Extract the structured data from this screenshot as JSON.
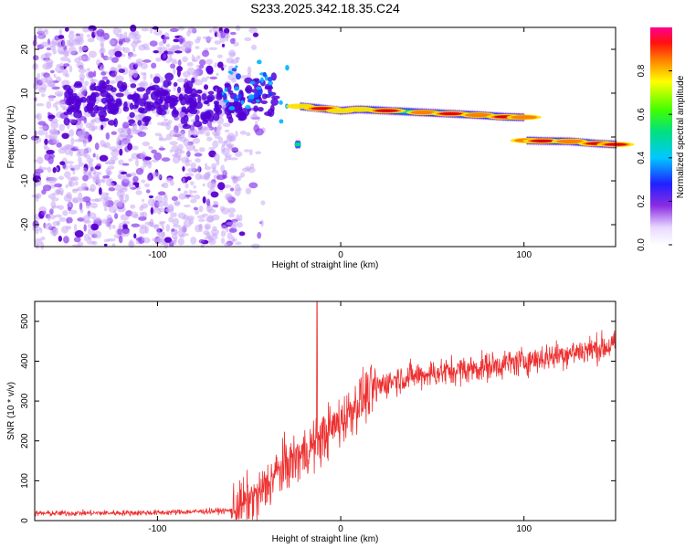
{
  "title": "S233.2025.342.18.35.C24",
  "chart_data": [
    {
      "type": "heatmap",
      "title": "S233.2025.342.18.35.C24",
      "xlabel": "Height of straight line (km)",
      "ylabel": "Frequency (Hz)",
      "xlim": [
        -167,
        150
      ],
      "ylim": [
        -25,
        25
      ],
      "xticks": [
        -100,
        0,
        100
      ],
      "xtick_labels": [
        "-100",
        "0",
        "100"
      ],
      "yticks": [
        -20,
        -10,
        0,
        10,
        20
      ],
      "ytick_labels": [
        "-20",
        "-10",
        "0",
        "10",
        "20"
      ],
      "signal_track": [
        {
          "x": -22,
          "y": 7.0,
          "amp": 0.55
        },
        {
          "x": -10,
          "y": 6.5,
          "amp": 0.9
        },
        {
          "x": 0,
          "y": 6.0,
          "amp": 0.6
        },
        {
          "x": 10,
          "y": 6.3,
          "amp": 0.7
        },
        {
          "x": 25,
          "y": 6.0,
          "amp": 0.95
        },
        {
          "x": 45,
          "y": 5.6,
          "amp": 0.75
        },
        {
          "x": 60,
          "y": 5.3,
          "amp": 0.95
        },
        {
          "x": 75,
          "y": 5.0,
          "amp": 0.8
        },
        {
          "x": 90,
          "y": 4.6,
          "amp": 0.95
        },
        {
          "x": 100,
          "y": 4.5,
          "amp": 0.8
        },
        {
          "x": 102,
          "y": -0.8,
          "amp": 0.8
        },
        {
          "x": 110,
          "y": -0.9,
          "amp": 0.95
        },
        {
          "x": 125,
          "y": -1.0,
          "amp": 0.85
        },
        {
          "x": 140,
          "y": -1.5,
          "amp": 0.95
        },
        {
          "x": 150,
          "y": -1.7,
          "amp": 0.9
        }
      ],
      "noise_region_x": [
        -167,
        -50
      ],
      "colorbar": {
        "label": "Normalized spectral amplitude",
        "range": [
          0,
          1
        ],
        "ticks": [
          0.0,
          0.2,
          0.4,
          0.6,
          0.8
        ],
        "tick_labels": [
          "0.0",
          "0.2",
          "0.4",
          "0.6",
          "0.8"
        ]
      }
    },
    {
      "type": "line",
      "xlabel": "Height of straight line (km)",
      "ylabel": "SNR (10 * v/v)",
      "xlim": [
        -167,
        150
      ],
      "ylim": [
        0,
        550
      ],
      "xticks": [
        -100,
        0,
        100
      ],
      "xtick_labels": [
        "-100",
        "0",
        "100"
      ],
      "yticks": [
        0,
        100,
        200,
        300,
        400,
        500
      ],
      "ytick_labels": [
        "0",
        "100",
        "200",
        "300",
        "400",
        "500"
      ],
      "color": "#ee3030",
      "envelope": {
        "x": [
          -167,
          -100,
          -60,
          -45,
          -35,
          -20,
          -10,
          0,
          10,
          20,
          30,
          50,
          70,
          100,
          130,
          150
        ],
        "y": [
          18,
          20,
          25,
          60,
          120,
          170,
          210,
          250,
          300,
          335,
          355,
          370,
          380,
          400,
          425,
          440
        ]
      },
      "spike": {
        "x": -13,
        "y": 550
      }
    }
  ]
}
